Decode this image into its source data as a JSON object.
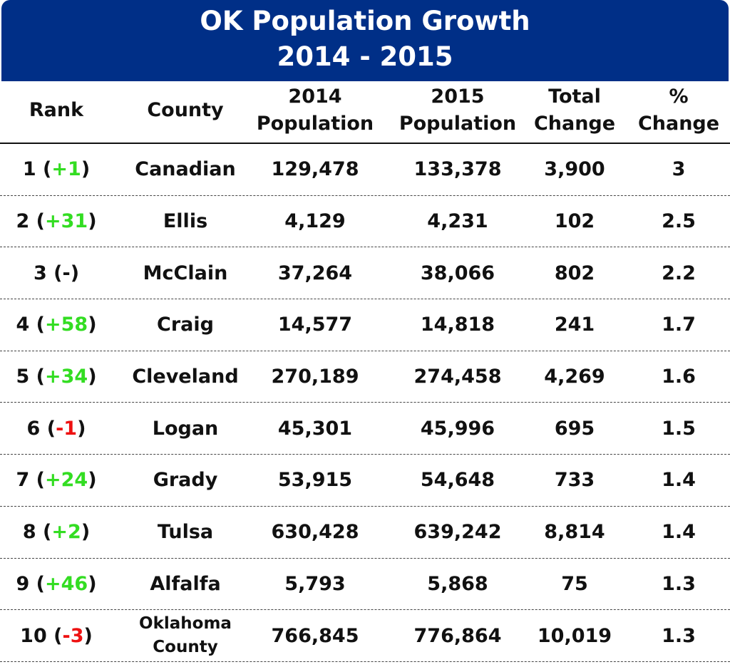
{
  "title": {
    "line1": "OK Population Growth",
    "line2": "2014 - 2015"
  },
  "colors": {
    "banner": "#002f87",
    "increase": "#33dd22",
    "decrease": "#ee1111",
    "text": "#111111"
  },
  "chart_data": {
    "type": "table",
    "title": "OK Population Growth 2014 - 2015",
    "columns": [
      "Rank",
      "County",
      "2014 Population",
      "2015 Population",
      "Total Change",
      "% Change"
    ],
    "header": {
      "rank": [
        "Rank"
      ],
      "county": [
        "County"
      ],
      "p14": [
        "2014",
        "Population"
      ],
      "p15": [
        "2015",
        "Population"
      ],
      "total": [
        "Total",
        "Change"
      ],
      "pct": [
        "%",
        "Change"
      ]
    },
    "rows": [
      {
        "rank": "1",
        "rank_change": "+1",
        "change_dir": "up",
        "county": "Canadian",
        "p14": "129,478",
        "p15": "133,378",
        "total": "3,900",
        "pct": "3"
      },
      {
        "rank": "2",
        "rank_change": "+31",
        "change_dir": "up",
        "county": "Ellis",
        "p14": "4,129",
        "p15": "4,231",
        "total": "102",
        "pct": "2.5"
      },
      {
        "rank": "3",
        "rank_change": "-",
        "change_dir": "flat",
        "county": "McClain",
        "p14": "37,264",
        "p15": "38,066",
        "total": "802",
        "pct": "2.2"
      },
      {
        "rank": "4",
        "rank_change": "+58",
        "change_dir": "up",
        "county": "Craig",
        "p14": "14,577",
        "p15": "14,818",
        "total": "241",
        "pct": "1.7"
      },
      {
        "rank": "5",
        "rank_change": "+34",
        "change_dir": "up",
        "county": "Cleveland",
        "p14": "270,189",
        "p15": "274,458",
        "total": "4,269",
        "pct": "1.6"
      },
      {
        "rank": "6",
        "rank_change": "-1",
        "change_dir": "down",
        "county": "Logan",
        "p14": "45,301",
        "p15": "45,996",
        "total": "695",
        "pct": "1.5"
      },
      {
        "rank": "7",
        "rank_change": "+24",
        "change_dir": "up",
        "county": "Grady",
        "p14": "53,915",
        "p15": "54,648",
        "total": "733",
        "pct": "1.4"
      },
      {
        "rank": "8",
        "rank_change": "+2",
        "change_dir": "up",
        "county": "Tulsa",
        "p14": "630,428",
        "p15": "639,242",
        "total": "8,814",
        "pct": "1.4"
      },
      {
        "rank": "9",
        "rank_change": "+46",
        "change_dir": "up",
        "county": "Alfalfa",
        "p14": "5,793",
        "p15": "5,868",
        "total": "75",
        "pct": "1.3"
      },
      {
        "rank": "10",
        "rank_change": "-3",
        "change_dir": "down",
        "county": "Oklahoma County",
        "county_lines": [
          "Oklahoma",
          "County"
        ],
        "p14": "766,845",
        "p15": "776,864",
        "total": "10,019",
        "pct": "1.3"
      }
    ]
  }
}
